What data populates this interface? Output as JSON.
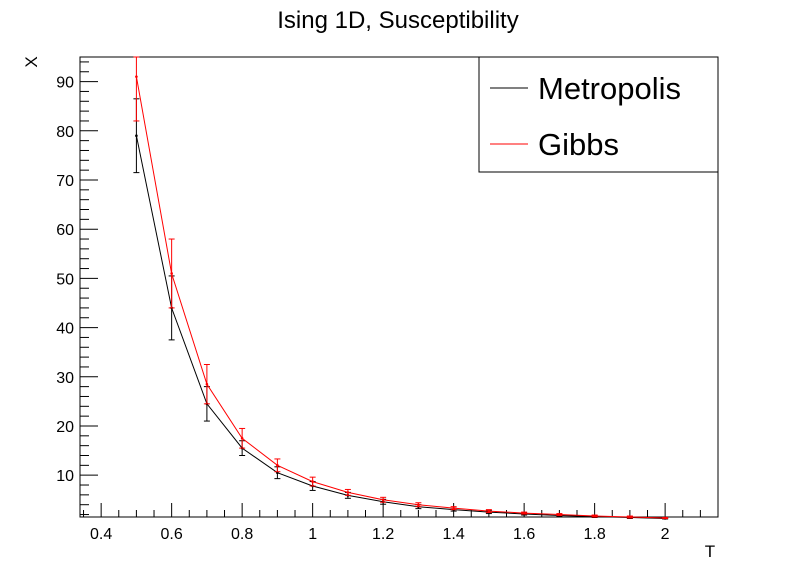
{
  "chart_data": {
    "type": "line",
    "title": "Ising 1D, Susceptibility",
    "xlabel": "T",
    "ylabel": "X",
    "xlim": [
      0.34,
      2.15
    ],
    "ylim": [
      1.5,
      95
    ],
    "x_ticks": [
      0.4,
      0.6,
      0.8,
      1,
      1.2,
      1.4,
      1.6,
      1.8,
      2
    ],
    "x_tick_labels": [
      "0.4",
      "0.6",
      "0.8",
      "1",
      "1.2",
      "1.4",
      "1.6",
      "1.8",
      "2"
    ],
    "y_ticks": [
      10,
      20,
      30,
      40,
      50,
      60,
      70,
      80,
      90
    ],
    "y_tick_labels": [
      "10",
      "20",
      "30",
      "40",
      "50",
      "60",
      "70",
      "80",
      "90"
    ],
    "legend_position": "top-right",
    "grid": false,
    "x": [
      0.5,
      0.6,
      0.7,
      0.8,
      0.9,
      1.0,
      1.1,
      1.2,
      1.3,
      1.4,
      1.5,
      1.6,
      1.7,
      1.8,
      1.9,
      2.0
    ],
    "series": [
      {
        "name": "Metropolis",
        "color": "#000000",
        "values": [
          79,
          44,
          24.5,
          15.5,
          10.5,
          7.8,
          5.9,
          4.6,
          3.6,
          3.0,
          2.5,
          2.1,
          1.8,
          1.6,
          1.4,
          1.2
        ],
        "errors": [
          7.5,
          6.5,
          3.5,
          1.5,
          1.2,
          0.9,
          0.6,
          0.5,
          0.4,
          0.3,
          0.3,
          0.2,
          0.2,
          0.2,
          0.2,
          0.1
        ]
      },
      {
        "name": "Gibbs",
        "color": "#ff0000",
        "values": [
          91,
          51,
          28.5,
          17.5,
          12,
          8.7,
          6.5,
          5.0,
          4.0,
          3.3,
          2.7,
          2.3,
          2.0,
          1.7,
          1.5,
          1.3
        ],
        "errors": [
          9,
          7,
          4,
          2,
          1.3,
          0.9,
          0.6,
          0.5,
          0.4,
          0.3,
          0.3,
          0.2,
          0.2,
          0.2,
          0.2,
          0.1
        ]
      }
    ]
  }
}
